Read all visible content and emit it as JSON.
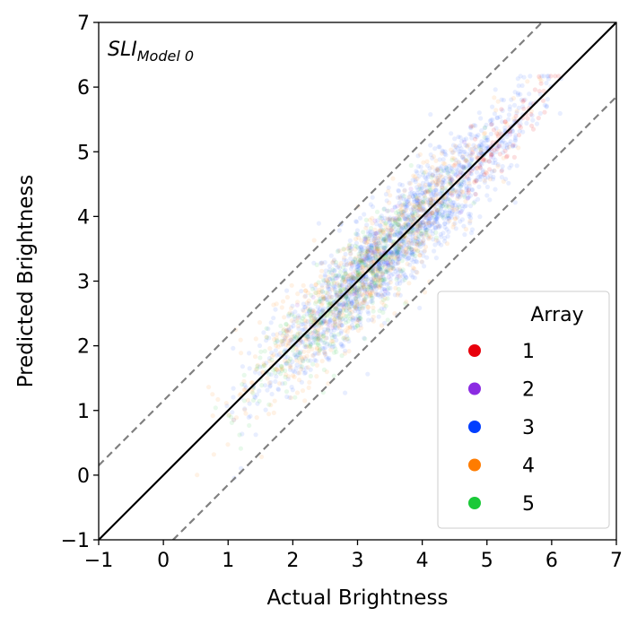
{
  "chart_data": {
    "type": "scatter",
    "title": "",
    "xlabel": "Actual Brightness",
    "ylabel": "Predicted Brightness",
    "xlim": [
      -1,
      7
    ],
    "ylim": [
      -1,
      7
    ],
    "xticks": [
      -1,
      0,
      1,
      2,
      3,
      4,
      5,
      6,
      7
    ],
    "yticks": [
      -1,
      0,
      1,
      2,
      3,
      4,
      5,
      6,
      7
    ],
    "xtick_labels": [
      "−1",
      "0",
      "1",
      "2",
      "3",
      "4",
      "5",
      "6",
      "7"
    ],
    "ytick_labels": [
      "−1",
      "0",
      "1",
      "2",
      "3",
      "4",
      "5",
      "6",
      "7"
    ],
    "annotation": {
      "main": "SLI",
      "subscript": "Model 0"
    },
    "reference_lines": [
      {
        "name": "identity",
        "intercept": 0,
        "slope": 1,
        "style": "solid",
        "color": "#000000"
      },
      {
        "name": "upper-bound",
        "intercept": 1.15,
        "slope": 1,
        "style": "dashed",
        "color": "#808080"
      },
      {
        "name": "lower-bound",
        "intercept": -1.15,
        "slope": 1,
        "style": "dashed",
        "color": "#808080"
      }
    ],
    "legend": {
      "title": "Array",
      "placement": "lower-right",
      "entries": [
        {
          "label": "1",
          "color": "#e8000b"
        },
        {
          "label": "2",
          "color": "#8b2be2"
        },
        {
          "label": "3",
          "color": "#023eff"
        },
        {
          "label": "4",
          "color": "#ff7c00"
        },
        {
          "label": "5",
          "color": "#1ac938"
        }
      ]
    },
    "series": [
      {
        "name": "1",
        "color": "#e8000b",
        "alpha": 0.12,
        "n_points": 80,
        "x_range": [
          4.2,
          6.5
        ],
        "noise_sd": 0.25
      },
      {
        "name": "2",
        "color": "#8b2be2",
        "alpha": 0.12,
        "n_points": 60,
        "x_range": [
          1.0,
          6.0
        ],
        "noise_sd": 0.35
      },
      {
        "name": "3",
        "color": "#023eff",
        "alpha": 0.09,
        "n_points": 1700,
        "x_range": [
          0.6,
          6.6
        ],
        "noise_sd": 0.38
      },
      {
        "name": "4",
        "color": "#ff7c00",
        "alpha": 0.1,
        "n_points": 800,
        "x_range": [
          0.2,
          6.2
        ],
        "noise_sd": 0.4
      },
      {
        "name": "5",
        "color": "#1ac938",
        "alpha": 0.1,
        "n_points": 500,
        "x_range": [
          0.6,
          5.4
        ],
        "noise_sd": 0.33
      }
    ]
  }
}
